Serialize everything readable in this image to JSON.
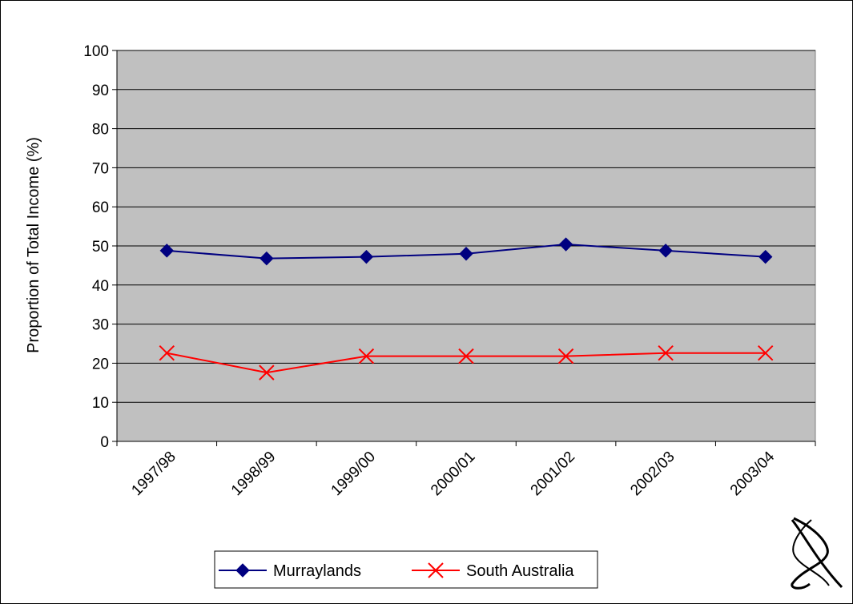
{
  "chart_data": {
    "type": "line",
    "title": "",
    "xlabel": "",
    "ylabel": "Proportion of Total Income (%)",
    "categories": [
      "1997/98",
      "1998/99",
      "1999/00",
      "2000/01",
      "2001/02",
      "2002/03",
      "2003/04"
    ],
    "ylim": [
      0,
      100
    ],
    "yticks": [
      0,
      10,
      20,
      30,
      40,
      50,
      60,
      70,
      80,
      90,
      100
    ],
    "grid": true,
    "legend": "bottom",
    "series": [
      {
        "name": "Murraylands",
        "values": [
          48.8,
          46.8,
          47.2,
          48.0,
          50.4,
          48.8,
          47.2
        ],
        "color": "#000080",
        "marker": "diamond"
      },
      {
        "name": "South Australia",
        "values": [
          22.6,
          17.6,
          21.8,
          21.8,
          21.8,
          22.6,
          22.6
        ],
        "color": "#ff0000",
        "marker": "x"
      }
    ],
    "colors": {
      "plot_background": "#c0c0c0",
      "gridline": "#000000"
    }
  },
  "decor": {
    "logo": "stylized-loop-logo"
  }
}
